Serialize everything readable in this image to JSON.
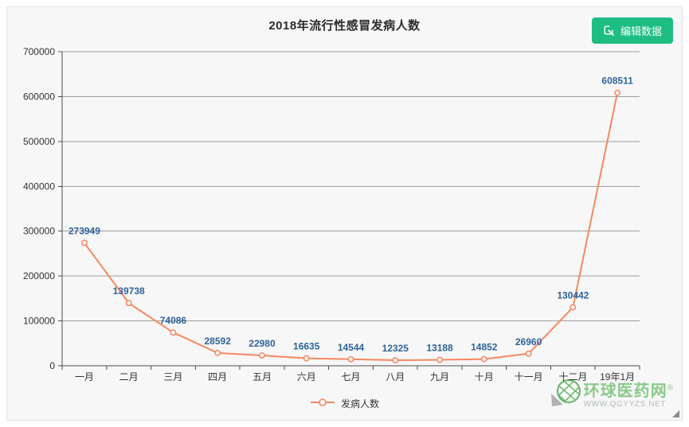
{
  "header": {
    "title": "2018年流行性感冒发病人数",
    "edit_button_label": "编辑数据"
  },
  "chart_data": {
    "type": "line",
    "title": "2018年流行性感冒发病人数",
    "categories": [
      "一月",
      "二月",
      "三月",
      "四月",
      "五月",
      "六月",
      "七月",
      "八月",
      "九月",
      "十月",
      "十一月",
      "十二月",
      "19年1月"
    ],
    "series": [
      {
        "name": "发病人数",
        "values": [
          273949,
          139738,
          74086,
          28592,
          22980,
          16635,
          14544,
          12325,
          13188,
          14852,
          26960,
          130442,
          608511
        ]
      }
    ],
    "ylim": [
      0,
      700000
    ],
    "y_tick_step": 100000,
    "y_tick_labels": [
      "0",
      "100000",
      "200000",
      "300000",
      "400000",
      "500000",
      "600000",
      "700000"
    ],
    "xlabel": "",
    "ylabel": "",
    "grid": "horizontal",
    "legend_position": "bottom",
    "show_data_labels": true
  },
  "watermark": {
    "name": "环球医药网",
    "reg_mark": "®",
    "url": "WWW.QGYYZS.NET"
  },
  "colors": {
    "line": "#f5885f",
    "marker_fill": "#f7f7f8",
    "data_label": "#2e6399",
    "axis": "#4d4d4d",
    "grid": "#9e9e9e",
    "tick_text": "#333333",
    "button_bg": "#1ebe82",
    "panel_bg": "#f7f7f8",
    "watermark_green": "#8bc98b",
    "watermark_gray": "#b4bcb4"
  }
}
